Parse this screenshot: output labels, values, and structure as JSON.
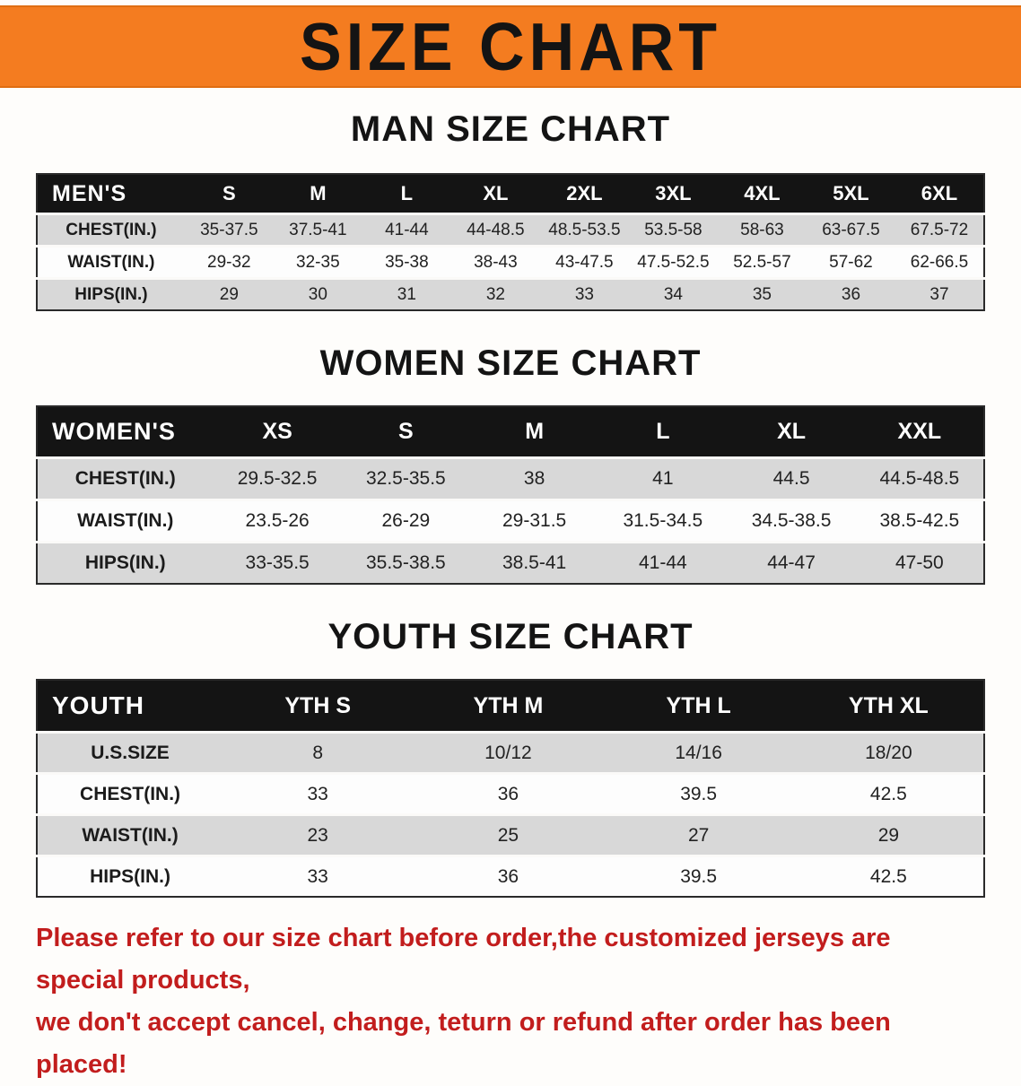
{
  "banner": {
    "title": "SIZE CHART"
  },
  "colors": {
    "banner_bg": "#F47C20",
    "header_bg": "#141414",
    "row_gray": "#D8D8D8",
    "disclaimer_red": "#C21D1D"
  },
  "men": {
    "heading": "MAN SIZE CHART",
    "label": "MEN'S",
    "columns": [
      "S",
      "M",
      "L",
      "XL",
      "2XL",
      "3XL",
      "4XL",
      "5XL",
      "6XL"
    ],
    "rows": [
      {
        "label": "CHEST(IN.)",
        "values": [
          "35-37.5",
          "37.5-41",
          "41-44",
          "44-48.5",
          "48.5-53.5",
          "53.5-58",
          "58-63",
          "63-67.5",
          "67.5-72"
        ]
      },
      {
        "label": "WAIST(IN.)",
        "values": [
          "29-32",
          "32-35",
          "35-38",
          "38-43",
          "43-47.5",
          "47.5-52.5",
          "52.5-57",
          "57-62",
          "62-66.5"
        ]
      },
      {
        "label": "HIPS(IN.)",
        "values": [
          "29",
          "30",
          "31",
          "32",
          "33",
          "34",
          "35",
          "36",
          "37"
        ]
      }
    ]
  },
  "women": {
    "heading": "WOMEN SIZE CHART",
    "label": "WOMEN'S",
    "columns": [
      "XS",
      "S",
      "M",
      "L",
      "XL",
      "XXL"
    ],
    "rows": [
      {
        "label": "CHEST(IN.)",
        "values": [
          "29.5-32.5",
          "32.5-35.5",
          "38",
          "41",
          "44.5",
          "44.5-48.5"
        ]
      },
      {
        "label": "WAIST(IN.)",
        "values": [
          "23.5-26",
          "26-29",
          "29-31.5",
          "31.5-34.5",
          "34.5-38.5",
          "38.5-42.5"
        ]
      },
      {
        "label": "HIPS(IN.)",
        "values": [
          "33-35.5",
          "35.5-38.5",
          "38.5-41",
          "41-44",
          "44-47",
          "47-50"
        ]
      }
    ]
  },
  "youth": {
    "heading": "YOUTH SIZE CHART",
    "label": "YOUTH",
    "columns": [
      "YTH S",
      "YTH M",
      "YTH L",
      "YTH XL"
    ],
    "rows": [
      {
        "label": "U.S.SIZE",
        "values": [
          "8",
          "10/12",
          "14/16",
          "18/20"
        ]
      },
      {
        "label": "CHEST(IN.)",
        "values": [
          "33",
          "36",
          "39.5",
          "42.5"
        ]
      },
      {
        "label": "WAIST(IN.)",
        "values": [
          "23",
          "25",
          "27",
          "29"
        ]
      },
      {
        "label": "HIPS(IN.)",
        "values": [
          "33",
          "36",
          "39.5",
          "42.5"
        ]
      }
    ]
  },
  "disclaimer": {
    "line1": "Please refer to our size chart before order,the customized jerseys are special products,",
    "line2": "we don't accept cancel, change, teturn or refund after order has been placed!"
  }
}
